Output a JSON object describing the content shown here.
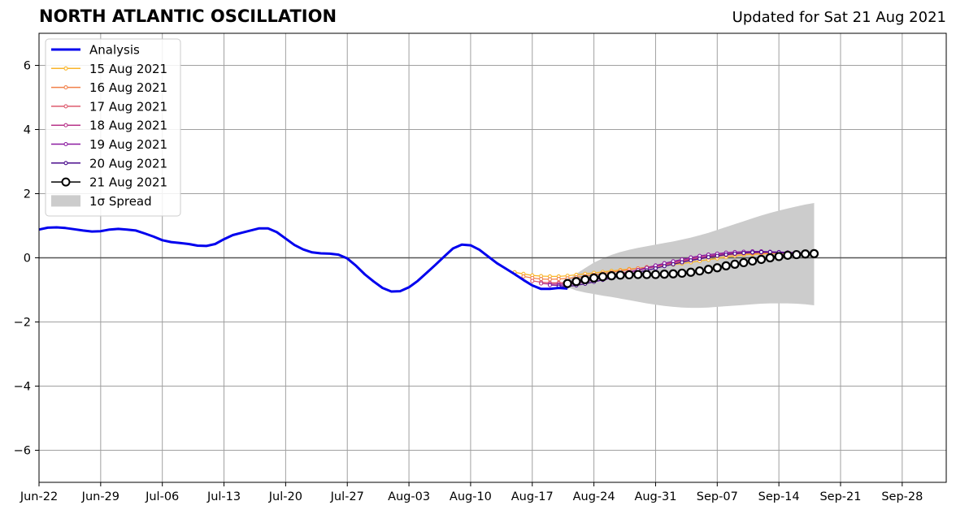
{
  "header": {
    "title": "NORTH ATLANTIC OSCILLATION",
    "updated": "Updated for Sat 21 Aug 2021"
  },
  "colors": {
    "analysis": "#0000ee",
    "spread": "#cccccc",
    "grid": "#a0a0a0",
    "zero_line": "#555555"
  },
  "chart_data": {
    "type": "line",
    "title": "NORTH ATLANTIC OSCILLATION",
    "xlabel": "",
    "ylabel": "",
    "xlim": [
      "2021-06-22",
      "2021-10-03"
    ],
    "ylim": [
      -7,
      7
    ],
    "grid": true,
    "legend_position": "top-left",
    "x_ticks": [
      "2021-06-22",
      "2021-06-29",
      "2021-07-06",
      "2021-07-13",
      "2021-07-20",
      "2021-07-27",
      "2021-08-03",
      "2021-08-10",
      "2021-08-17",
      "2021-08-24",
      "2021-08-31",
      "2021-09-07",
      "2021-09-14",
      "2021-09-21",
      "2021-09-28"
    ],
    "x_tick_labels": [
      "Jun-22",
      "Jun-29",
      "Jul-06",
      "Jul-13",
      "Jul-20",
      "Jul-27",
      "Aug-03",
      "Aug-10",
      "Aug-17",
      "Aug-24",
      "Aug-31",
      "Sep-07",
      "Sep-14",
      "Sep-21",
      "Sep-28"
    ],
    "y_ticks": [
      -6,
      -4,
      -2,
      0,
      2,
      4,
      6
    ],
    "y_tick_labels": [
      "−6",
      "−4",
      "−2",
      "0",
      "2",
      "4",
      "6"
    ],
    "analysis": {
      "name": "Analysis",
      "color": "#0000ee",
      "x": [
        "2021-06-22",
        "2021-06-23",
        "2021-06-24",
        "2021-06-25",
        "2021-06-26",
        "2021-06-27",
        "2021-06-28",
        "2021-06-29",
        "2021-06-30",
        "2021-07-01",
        "2021-07-02",
        "2021-07-03",
        "2021-07-04",
        "2021-07-05",
        "2021-07-06",
        "2021-07-07",
        "2021-07-08",
        "2021-07-09",
        "2021-07-10",
        "2021-07-11",
        "2021-07-12",
        "2021-07-13",
        "2021-07-14",
        "2021-07-15",
        "2021-07-16",
        "2021-07-17",
        "2021-07-18",
        "2021-07-19",
        "2021-07-20",
        "2021-07-21",
        "2021-07-22",
        "2021-07-23",
        "2021-07-24",
        "2021-07-25",
        "2021-07-26",
        "2021-07-27",
        "2021-07-28",
        "2021-07-29",
        "2021-07-30",
        "2021-07-31",
        "2021-08-01",
        "2021-08-02",
        "2021-08-03",
        "2021-08-04",
        "2021-08-05",
        "2021-08-06",
        "2021-08-07",
        "2021-08-08",
        "2021-08-09",
        "2021-08-10",
        "2021-08-11",
        "2021-08-12",
        "2021-08-13",
        "2021-08-14",
        "2021-08-15",
        "2021-08-16",
        "2021-08-17",
        "2021-08-18",
        "2021-08-19",
        "2021-08-20",
        "2021-08-21"
      ],
      "y": [
        0.88,
        0.94,
        0.95,
        0.93,
        0.89,
        0.85,
        0.82,
        0.83,
        0.88,
        0.9,
        0.88,
        0.85,
        0.76,
        0.66,
        0.55,
        0.49,
        0.46,
        0.43,
        0.38,
        0.37,
        0.43,
        0.58,
        0.71,
        0.78,
        0.85,
        0.92,
        0.92,
        0.8,
        0.6,
        0.4,
        0.26,
        0.17,
        0.14,
        0.13,
        0.1,
        -0.02,
        -0.25,
        -0.52,
        -0.74,
        -0.94,
        -1.05,
        -1.04,
        -0.92,
        -0.72,
        -0.47,
        -0.22,
        0.04,
        0.29,
        0.41,
        0.39,
        0.25,
        0.04,
        -0.17,
        -0.34,
        -0.51,
        -0.69,
        -0.86,
        -0.97,
        -0.97,
        -0.94,
        -0.96
      ]
    },
    "forecasts": [
      {
        "name": "15 Aug 2021",
        "color": "#f9b529",
        "start": "2021-08-15",
        "y": [
          -0.45,
          -0.5,
          -0.55,
          -0.57,
          -0.58,
          -0.58,
          -0.56,
          -0.53,
          -0.5,
          -0.47,
          -0.44,
          -0.41,
          -0.38,
          -0.35,
          -0.33,
          -0.3,
          -0.27,
          -0.24,
          -0.21,
          -0.18,
          -0.14,
          -0.1,
          -0.06,
          -0.02,
          0.02,
          0.06,
          0.09,
          0.11,
          0.12,
          0.13,
          0.14,
          0.14,
          0.14,
          0.13
        ]
      },
      {
        "name": "16 Aug 2021",
        "color": "#f1804a",
        "start": "2021-08-16",
        "y": [
          -0.58,
          -0.63,
          -0.66,
          -0.67,
          -0.66,
          -0.64,
          -0.61,
          -0.57,
          -0.53,
          -0.49,
          -0.45,
          -0.41,
          -0.37,
          -0.33,
          -0.29,
          -0.25,
          -0.21,
          -0.16,
          -0.11,
          -0.07,
          -0.03,
          0.01,
          0.05,
          0.08,
          0.11,
          0.13,
          0.14,
          0.15,
          0.15,
          0.15,
          0.14,
          0.13,
          0.12
        ]
      },
      {
        "name": "17 Aug 2021",
        "color": "#dd5a6e",
        "start": "2021-08-17",
        "y": [
          -0.72,
          -0.76,
          -0.78,
          -0.78,
          -0.76,
          -0.72,
          -0.68,
          -0.63,
          -0.58,
          -0.53,
          -0.48,
          -0.43,
          -0.38,
          -0.33,
          -0.28,
          -0.22,
          -0.16,
          -0.1,
          -0.05,
          0.0,
          0.04,
          0.08,
          0.11,
          0.13,
          0.15,
          0.16,
          0.17,
          0.17,
          0.16,
          0.15,
          0.14,
          0.13
        ]
      },
      {
        "name": "18 Aug 2021",
        "color": "#b8348a",
        "start": "2021-08-18",
        "y": [
          -0.8,
          -0.82,
          -0.82,
          -0.8,
          -0.76,
          -0.71,
          -0.66,
          -0.61,
          -0.56,
          -0.51,
          -0.45,
          -0.39,
          -0.33,
          -0.27,
          -0.2,
          -0.14,
          -0.08,
          -0.03,
          0.02,
          0.06,
          0.1,
          0.13,
          0.15,
          0.16,
          0.17,
          0.17,
          0.17,
          0.16,
          0.15,
          0.14,
          0.13
        ]
      },
      {
        "name": "19 Aug 2021",
        "color": "#8b1aa0",
        "start": "2021-08-19",
        "y": [
          -0.85,
          -0.86,
          -0.84,
          -0.8,
          -0.75,
          -0.69,
          -0.63,
          -0.57,
          -0.51,
          -0.45,
          -0.38,
          -0.31,
          -0.24,
          -0.17,
          -0.11,
          -0.05,
          0.01,
          0.06,
          0.1,
          0.13,
          0.16,
          0.18,
          0.19,
          0.2,
          0.2,
          0.19,
          0.18,
          0.17,
          0.16,
          0.15
        ]
      },
      {
        "name": "20 Aug 2021",
        "color": "#4a0c8c",
        "start": "2021-08-20",
        "y": [
          -0.9,
          -0.89,
          -0.86,
          -0.81,
          -0.75,
          -0.69,
          -0.63,
          -0.57,
          -0.51,
          -0.45,
          -0.39,
          -0.33,
          -0.26,
          -0.2,
          -0.14,
          -0.08,
          -0.03,
          0.02,
          0.06,
          0.1,
          0.13,
          0.15,
          0.17,
          0.18,
          0.18,
          0.17,
          0.16,
          0.15,
          0.14
        ]
      }
    ],
    "current": {
      "name": "21 Aug 2021",
      "color": "#000000",
      "start": "2021-08-21",
      "y": [
        -0.8,
        -0.74,
        -0.68,
        -0.63,
        -0.59,
        -0.56,
        -0.54,
        -0.53,
        -0.52,
        -0.52,
        -0.52,
        -0.51,
        -0.5,
        -0.48,
        -0.45,
        -0.41,
        -0.36,
        -0.31,
        -0.25,
        -0.2,
        -0.15,
        -0.1,
        -0.05,
        0.0,
        0.04,
        0.08,
        0.1,
        0.12,
        0.13
      ]
    },
    "spread": {
      "name": "1σ Spread",
      "color": "#cccccc",
      "x": [
        "2021-08-21",
        "2021-08-22",
        "2021-08-23",
        "2021-08-24",
        "2021-08-25",
        "2021-08-26",
        "2021-08-27",
        "2021-08-28",
        "2021-08-29",
        "2021-08-30",
        "2021-08-31",
        "2021-09-01",
        "2021-09-02",
        "2021-09-03",
        "2021-09-04",
        "2021-09-05",
        "2021-09-06",
        "2021-09-07",
        "2021-09-08",
        "2021-09-09",
        "2021-09-10",
        "2021-09-11",
        "2021-09-12",
        "2021-09-13",
        "2021-09-14",
        "2021-09-15",
        "2021-09-16",
        "2021-09-17",
        "2021-09-18"
      ],
      "upper": [
        -0.7,
        -0.5,
        -0.32,
        -0.15,
        -0.02,
        0.09,
        0.18,
        0.25,
        0.31,
        0.36,
        0.41,
        0.46,
        0.51,
        0.57,
        0.63,
        0.7,
        0.78,
        0.87,
        0.96,
        1.05,
        1.14,
        1.23,
        1.32,
        1.4,
        1.47,
        1.54,
        1.6,
        1.66,
        1.71
      ],
      "lower": [
        -0.92,
        -1.02,
        -1.08,
        -1.13,
        -1.18,
        -1.22,
        -1.27,
        -1.32,
        -1.37,
        -1.42,
        -1.46,
        -1.5,
        -1.53,
        -1.55,
        -1.56,
        -1.56,
        -1.55,
        -1.53,
        -1.51,
        -1.49,
        -1.47,
        -1.45,
        -1.43,
        -1.42,
        -1.42,
        -1.42,
        -1.43,
        -1.45,
        -1.48
      ]
    }
  }
}
